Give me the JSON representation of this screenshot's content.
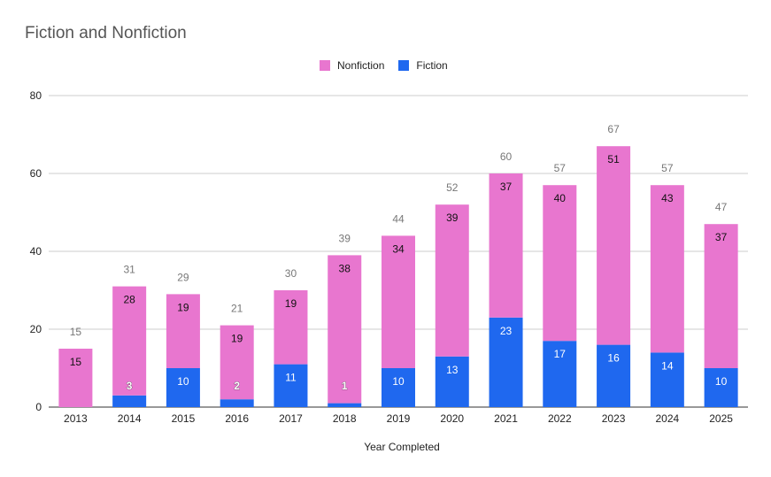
{
  "chart_data": {
    "type": "bar",
    "stacked": true,
    "title": "Fiction and Nonfiction",
    "xlabel": "Year Completed",
    "ylabel": "",
    "ylim": [
      0,
      80
    ],
    "yticks": [
      0,
      20,
      40,
      60,
      80
    ],
    "legend_position": "top-center",
    "categories": [
      "2013",
      "2014",
      "2015",
      "2016",
      "2017",
      "2018",
      "2019",
      "2020",
      "2021",
      "2022",
      "2023",
      "2024",
      "2025"
    ],
    "series": [
      {
        "name": "Fiction",
        "color": "#1f68ef",
        "values": [
          0,
          3,
          10,
          2,
          11,
          1,
          10,
          13,
          23,
          17,
          16,
          14,
          10
        ]
      },
      {
        "name": "Nonfiction",
        "color": "#e876cf",
        "values": [
          15,
          28,
          19,
          19,
          19,
          38,
          34,
          39,
          37,
          40,
          51,
          43,
          37
        ]
      }
    ],
    "totals": [
      15,
      31,
      29,
      21,
      30,
      39,
      44,
      52,
      60,
      57,
      67,
      57,
      47
    ]
  },
  "legend": {
    "items": [
      {
        "name": "Nonfiction",
        "color": "#e876cf"
      },
      {
        "name": "Fiction",
        "color": "#1f68ef"
      }
    ]
  }
}
